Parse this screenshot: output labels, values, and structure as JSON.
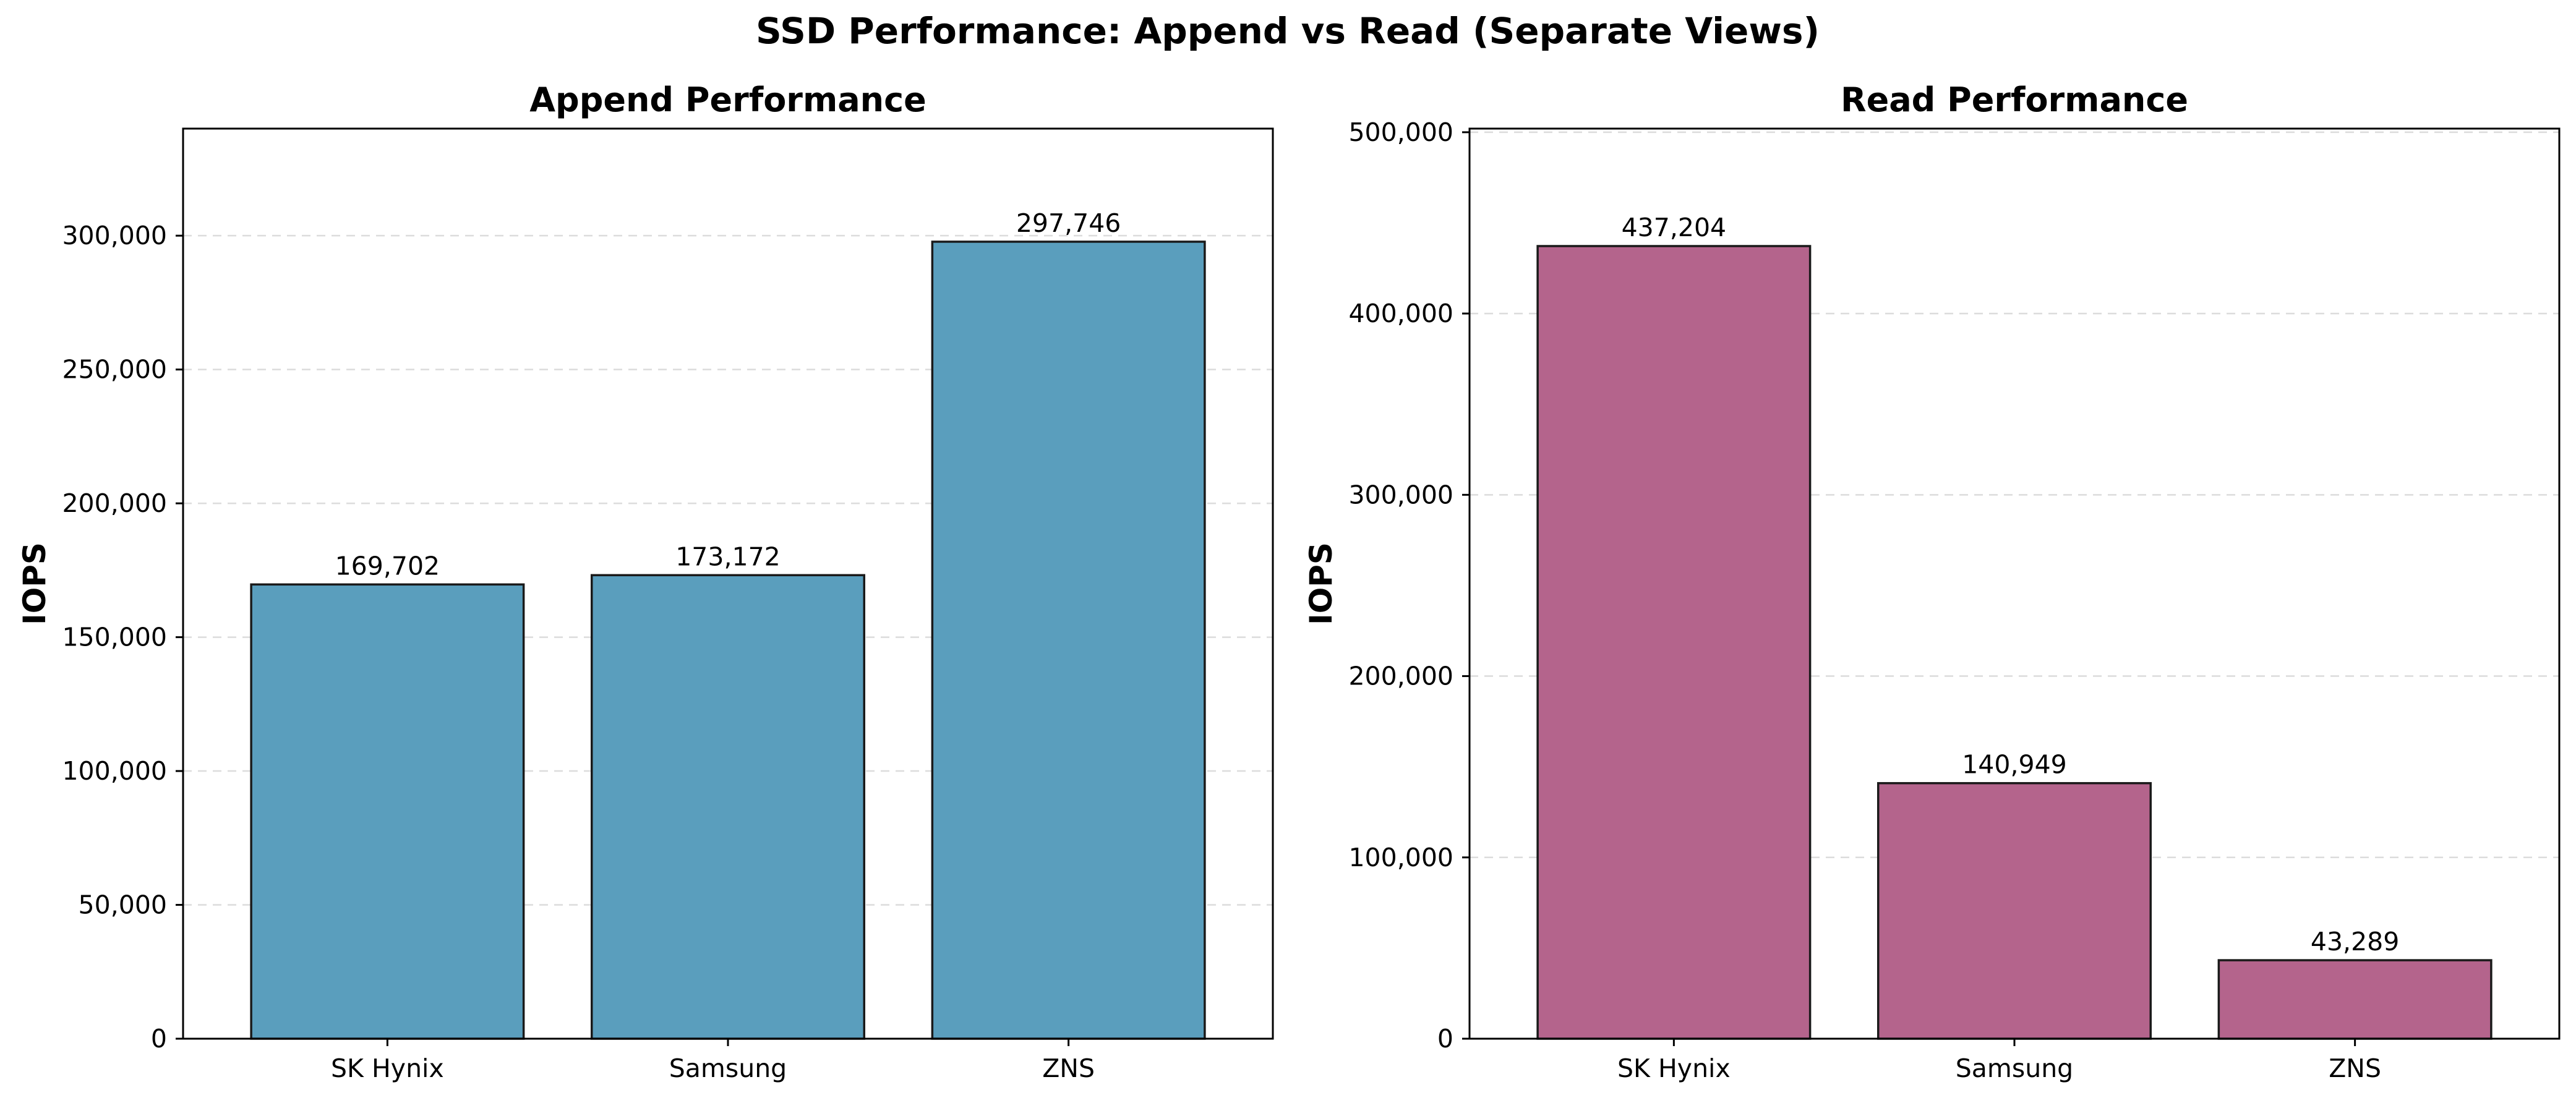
{
  "title": "SSD Performance: Append vs Read (Separate Views)",
  "chart_data": [
    {
      "type": "bar",
      "title": "Append Performance",
      "xlabel": "",
      "ylabel": "IOPS",
      "categories": [
        "SK Hynix",
        "Samsung",
        "ZNS"
      ],
      "values": [
        169702,
        173172,
        297746
      ],
      "value_labels": [
        "169,702",
        "173,172",
        "297,746"
      ],
      "ylim": [
        0,
        340000
      ],
      "yticks": [
        0,
        50000,
        100000,
        150000,
        200000,
        250000,
        300000
      ],
      "ytick_labels": [
        "0",
        "50,000",
        "100,000",
        "150,000",
        "200,000",
        "250,000",
        "300,000"
      ],
      "bar_color": "#5a9ebd",
      "grid": true
    },
    {
      "type": "bar",
      "title": "Read Performance",
      "xlabel": "",
      "ylabel": "IOPS",
      "categories": [
        "SK Hynix",
        "Samsung",
        "ZNS"
      ],
      "values": [
        437204,
        140949,
        43289
      ],
      "value_labels": [
        "437,204",
        "140,949",
        "43,289"
      ],
      "ylim": [
        0,
        502000
      ],
      "yticks": [
        0,
        100000,
        200000,
        300000,
        400000,
        500000
      ],
      "ytick_labels": [
        "0",
        "100,000",
        "200,000",
        "300,000",
        "400,000",
        "500,000"
      ],
      "bar_color": "#b4648c",
      "grid": true
    }
  ]
}
